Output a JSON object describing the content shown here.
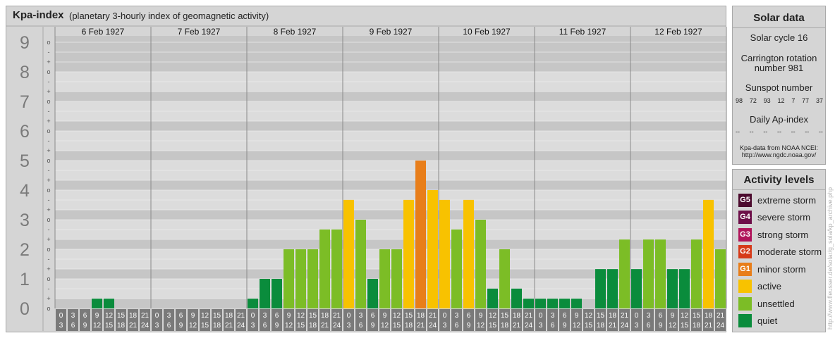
{
  "header": {
    "title": "Kpa-index",
    "subtitle": "(planetary 3-hourly index of geomagnetic activity)"
  },
  "chart_data": {
    "type": "bar",
    "title": "Kpa-index",
    "subtitle": "(planetary 3-hourly index of geomagnetic activity)",
    "ylim": [
      0,
      9
    ],
    "y_major_ticks": [
      "0",
      "1",
      "2",
      "3",
      "4",
      "5",
      "6",
      "7",
      "8",
      "9"
    ],
    "y_minor_ticks": [
      "o",
      "+",
      "-"
    ],
    "days": [
      "6 Feb 1927",
      "7 Feb 1927",
      "8 Feb 1927",
      "9 Feb 1927",
      "10 Feb 1927",
      "11 Feb 1927",
      "12 Feb 1927"
    ],
    "interval_start_labels": [
      "0",
      "3",
      "6",
      "9",
      "12",
      "15",
      "18",
      "21"
    ],
    "interval_end_labels": [
      "3",
      "6",
      "9",
      "12",
      "15",
      "18",
      "21",
      "24"
    ],
    "values": [
      0,
      0,
      0,
      0.33,
      0.33,
      0,
      0,
      0,
      0,
      0,
      0,
      0,
      0,
      0,
      0,
      0,
      0.33,
      1,
      1,
      2,
      2,
      2,
      2.67,
      2.67,
      3.67,
      3,
      1,
      2,
      2,
      3.67,
      5,
      4,
      3.67,
      2.67,
      3.67,
      3,
      0.67,
      2,
      0.67,
      0.33,
      0.33,
      0.33,
      0.33,
      0.33,
      0,
      1.33,
      1.33,
      2.33,
      1.33,
      2.33,
      2.33,
      1.33,
      1.33,
      2.33,
      3.67,
      2
    ],
    "grid": true
  },
  "colors": {
    "quiet": "#0a8c3c",
    "unsettled": "#7cbd26",
    "active": "#f8c200",
    "minor_storm": "#e87e1a",
    "moderate_storm": "#d63a19",
    "strong_storm": "#b0145a",
    "severe_storm": "#6d0f49",
    "extreme_storm": "#4c0b2e",
    "band_dark": "#c6c6c6",
    "band_light": "#dcdcdc",
    "axis_cell": "#7a7a7a"
  },
  "solar": {
    "title": "Solar data",
    "cycle": "Solar cycle 16",
    "carrington_line1": "Carrington rotation",
    "carrington_line2": "number 981",
    "sunspot_label": "Sunspot number",
    "sunspots": [
      "98",
      "72",
      "93",
      "12",
      "7",
      "77",
      "37"
    ],
    "ap_label": "Daily Ap-index",
    "ap_values": [
      "--",
      "--",
      "--",
      "--",
      "--",
      "--",
      "--"
    ],
    "source_line1": "Kpa-data from NOAA NCEI:",
    "source_line2": "http://www.ngdc.noaa.gov/"
  },
  "levels": {
    "title": "Activity levels",
    "items": [
      {
        "badge": "G5",
        "label": "extreme storm",
        "color": "#4c0b2e"
      },
      {
        "badge": "G4",
        "label": "severe storm",
        "color": "#6d0f49"
      },
      {
        "badge": "G3",
        "label": "strong storm",
        "color": "#b0145a"
      },
      {
        "badge": "G2",
        "label": "moderate storm",
        "color": "#d63a19"
      },
      {
        "badge": "G1",
        "label": "minor storm",
        "color": "#e87e1a"
      },
      {
        "badge": "",
        "label": "active",
        "color": "#f8c200"
      },
      {
        "badge": "",
        "label": "unsettled",
        "color": "#7cbd26"
      },
      {
        "badge": "",
        "label": "quiet",
        "color": "#0a8c3c"
      }
    ]
  },
  "watermark": "http://www.fleusser.de/solar/g_sola/kp_archive.php"
}
